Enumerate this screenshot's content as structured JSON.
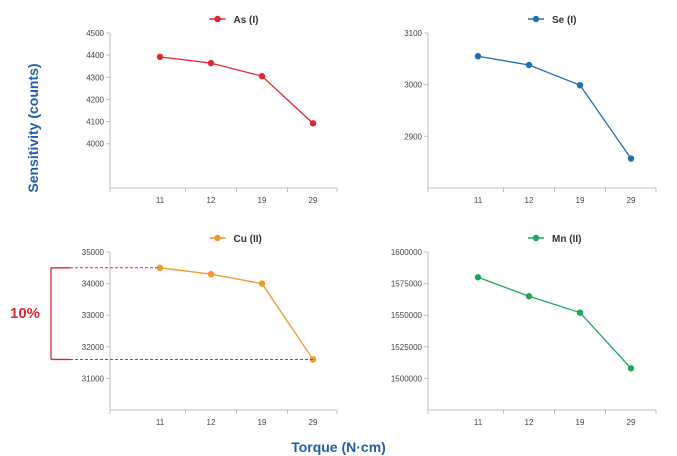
{
  "figure": {
    "ylabel": "Sensitivity (counts)",
    "xlabel": "Torque (N·cm)",
    "annotation": "10%",
    "annotation_color": "#e0262e",
    "label_color": "#1f5ea8"
  },
  "chart_data": [
    {
      "type": "line",
      "title": "As (I)",
      "series": [
        {
          "name": "As (I)",
          "values": [
            4392,
            4364,
            4305,
            4092
          ]
        }
      ],
      "categories": [
        "11",
        "12",
        "19",
        "29"
      ],
      "yticks": [
        "4000",
        "4100",
        "4200",
        "4300",
        "4400",
        "4500"
      ],
      "ylim": [
        3800,
        4500
      ],
      "color": "#e0262e",
      "legend_position": "top-center",
      "grid": false
    },
    {
      "type": "line",
      "title": "Se (I)",
      "series": [
        {
          "name": "Se (I)",
          "values": [
            3055,
            3038,
            2999,
            2857
          ]
        }
      ],
      "categories": [
        "11",
        "12",
        "19",
        "29"
      ],
      "yticks": [
        "2900",
        "3000",
        "3100"
      ],
      "ylim": [
        2800,
        3100
      ],
      "color": "#1f6fb2",
      "legend_position": "top-center",
      "grid": false
    },
    {
      "type": "line",
      "title": "Cu (II)",
      "series": [
        {
          "name": "Cu (II)",
          "values": [
            34500,
            34300,
            34000,
            31600
          ]
        }
      ],
      "categories": [
        "11",
        "12",
        "19",
        "29"
      ],
      "yticks": [
        "31000",
        "32000",
        "33000",
        "34000",
        "35000"
      ],
      "ylim": [
        30000,
        35000
      ],
      "color": "#f0962a",
      "legend_position": "top-center",
      "grid": false
    },
    {
      "type": "line",
      "title": "Mn (II)",
      "series": [
        {
          "name": "Mn (II)",
          "values": [
            1580000,
            1565000,
            1552000,
            1508000
          ]
        }
      ],
      "categories": [
        "11",
        "12",
        "19",
        "29"
      ],
      "yticks": [
        "1500000",
        "1525000",
        "1550000",
        "1575000",
        "1600000"
      ],
      "ylim": [
        1475000,
        1600000
      ],
      "color": "#1ea65a",
      "legend_position": "top-center",
      "grid": false
    }
  ]
}
